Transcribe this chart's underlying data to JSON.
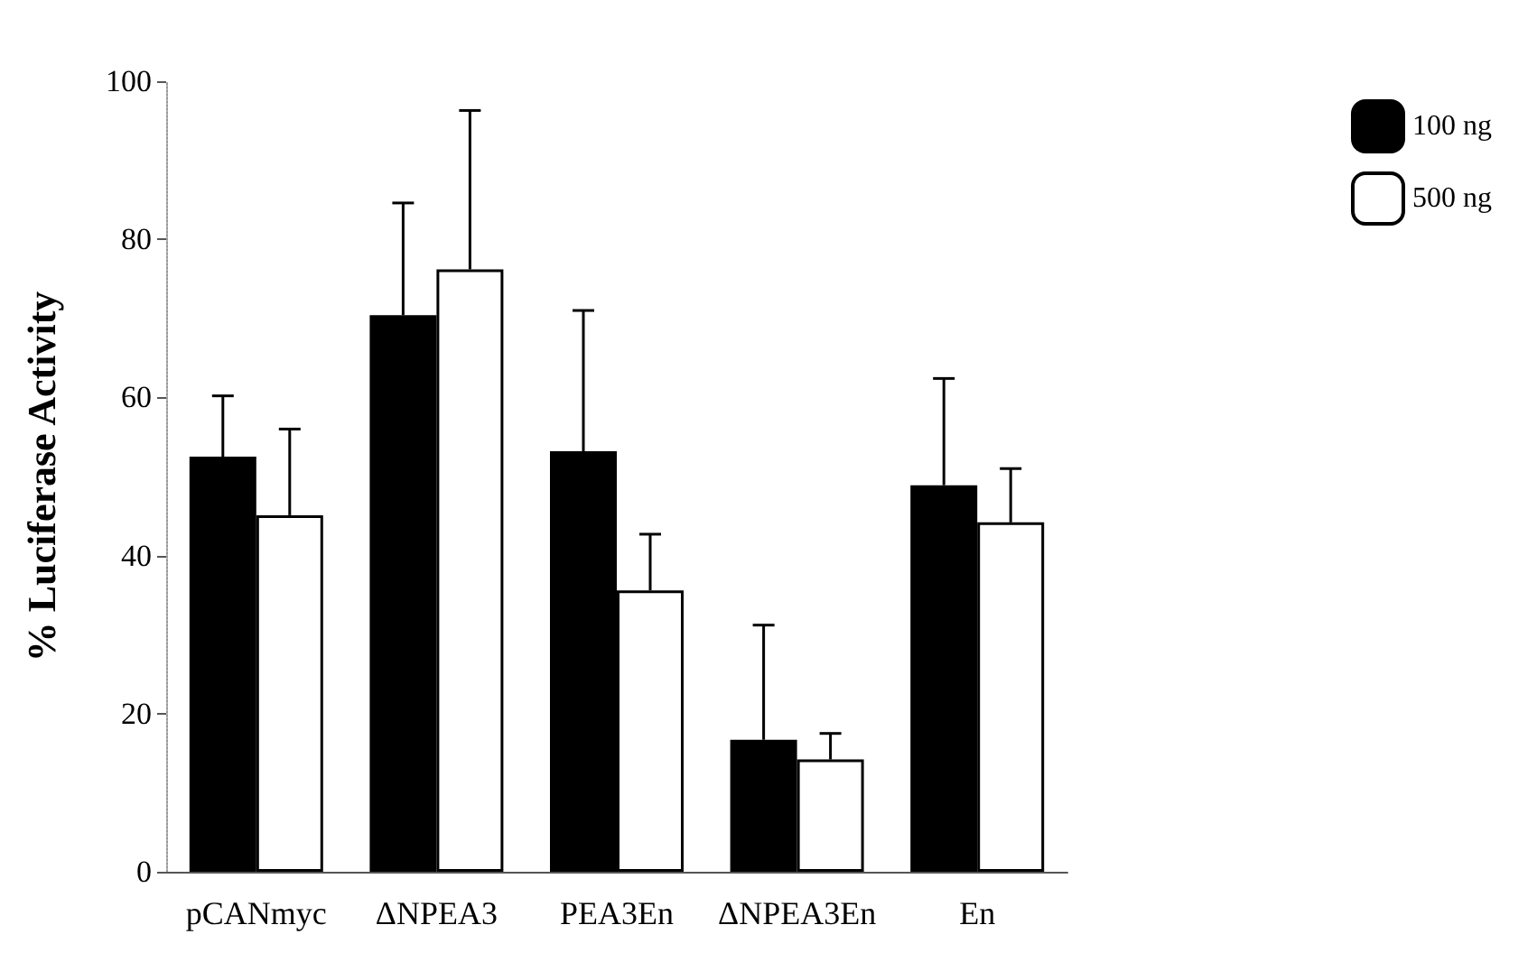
{
  "chart_data": {
    "type": "bar",
    "ylabel": "% Luciferase Activity",
    "categories": [
      "pCANmyc",
      "ΔNPEA3",
      "PEA3En",
      "ΔNPEA3En",
      "En"
    ],
    "series": [
      {
        "name": "100 ng",
        "color": "#000000",
        "values": [
          52.5,
          70.4,
          53.2,
          16.7,
          48.9
        ],
        "errors": [
          [
            52.5,
            60.2
          ],
          [
            70.4,
            84.6
          ],
          [
            53.2,
            71
          ],
          [
            16.7,
            31.2
          ],
          [
            48.9,
            62.4
          ]
        ]
      },
      {
        "name": "500 ng",
        "color": "#ffffff",
        "values": [
          45.1,
          76.2,
          35.6,
          14.2,
          44.2
        ],
        "errors": [
          [
            45.1,
            56
          ],
          [
            76.2,
            96.3
          ],
          [
            35.6,
            42.7
          ],
          [
            14.2,
            17.5
          ],
          [
            44.2,
            51
          ]
        ]
      }
    ],
    "ylim": [
      0,
      100
    ],
    "yticks": [
      0,
      20,
      40,
      60,
      80,
      100
    ],
    "grid": false,
    "legend": "top right"
  }
}
